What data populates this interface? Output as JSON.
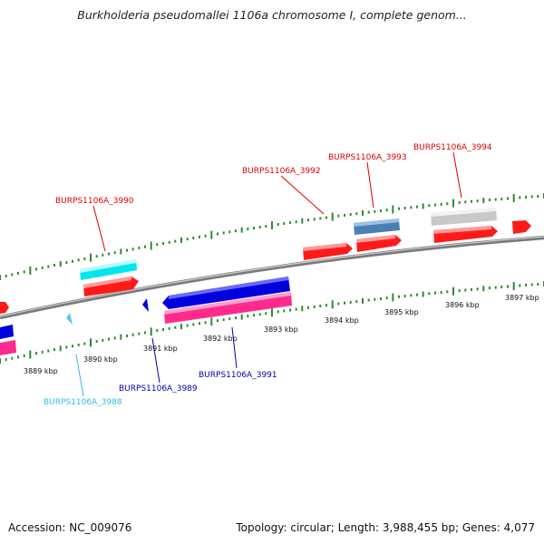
{
  "header": {
    "title": "Burkholderia pseudomallei 1106a chromosome I, complete genom..."
  },
  "footer": {
    "accession": "Accession: NC_009076",
    "topology": "Topology: circular; Length: 3,988,455 bp; Genes: 4,077"
  },
  "colors": {
    "backbone": "#8a8a8a",
    "ticks": "#2e8b2e",
    "cyan_gene": "#00e5ee",
    "red_gene": "#ff1a1a",
    "blue_gene": "#0000dd",
    "pink_gene": "#ff2a8e",
    "steelblue_gene": "#4a7fb5",
    "gray_gene": "#c8c8c8",
    "light_blue_gene": "#5ac8e6",
    "label_red": "#dd0000",
    "label_blue": "#0000aa",
    "label_cyan": "#33bbdd"
  },
  "scale_labels": [
    "3889 kbp",
    "3890 kbp",
    "3891 kbp",
    "3892 kbp",
    "3893 kbp",
    "3894 kbp",
    "3895 kbp",
    "3896 kbp",
    "3897 kbp"
  ],
  "gene_labels": [
    {
      "id": "BURPS1106A_3990",
      "color": "label_red"
    },
    {
      "id": "BURPS1106A_3992",
      "color": "label_red"
    },
    {
      "id": "BURPS1106A_3993",
      "color": "label_red"
    },
    {
      "id": "BURPS1106A_3994",
      "color": "label_red"
    },
    {
      "id": "BURPS1106A_3988",
      "color": "label_cyan"
    },
    {
      "id": "BURPS1106A_3989",
      "color": "label_blue"
    },
    {
      "id": "BURPS1106A_3991",
      "color": "label_blue"
    }
  ]
}
